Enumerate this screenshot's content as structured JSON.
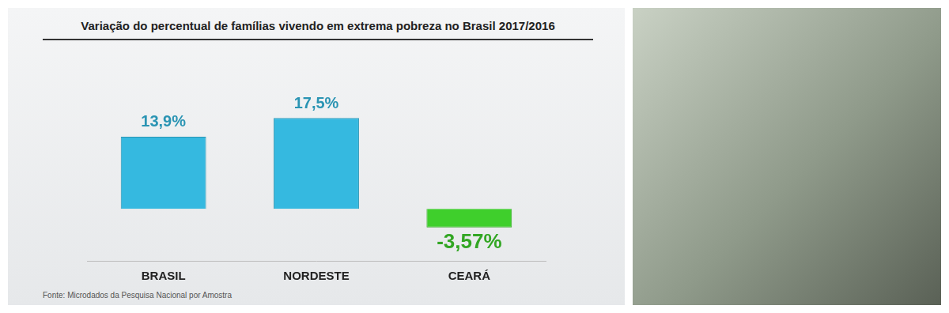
{
  "chart_data": {
    "type": "bar",
    "title": "Variação do percentual de famílias vivendo em extrema pobreza no Brasil 2017/2016",
    "categories": [
      "BRASIL",
      "NORDESTE",
      "CEARÁ"
    ],
    "values": [
      13.9,
      17.5,
      -3.57
    ],
    "value_labels": [
      "13,9%",
      "17,5%",
      "-3,57%"
    ],
    "colors": [
      "#35b9e0",
      "#35b9e0",
      "#3fcf2c"
    ],
    "data_labels": true,
    "tick_labels": "x",
    "grid": false,
    "note": "Fonte: Microdados da Pesquisa Nacional por Amostra"
  }
}
